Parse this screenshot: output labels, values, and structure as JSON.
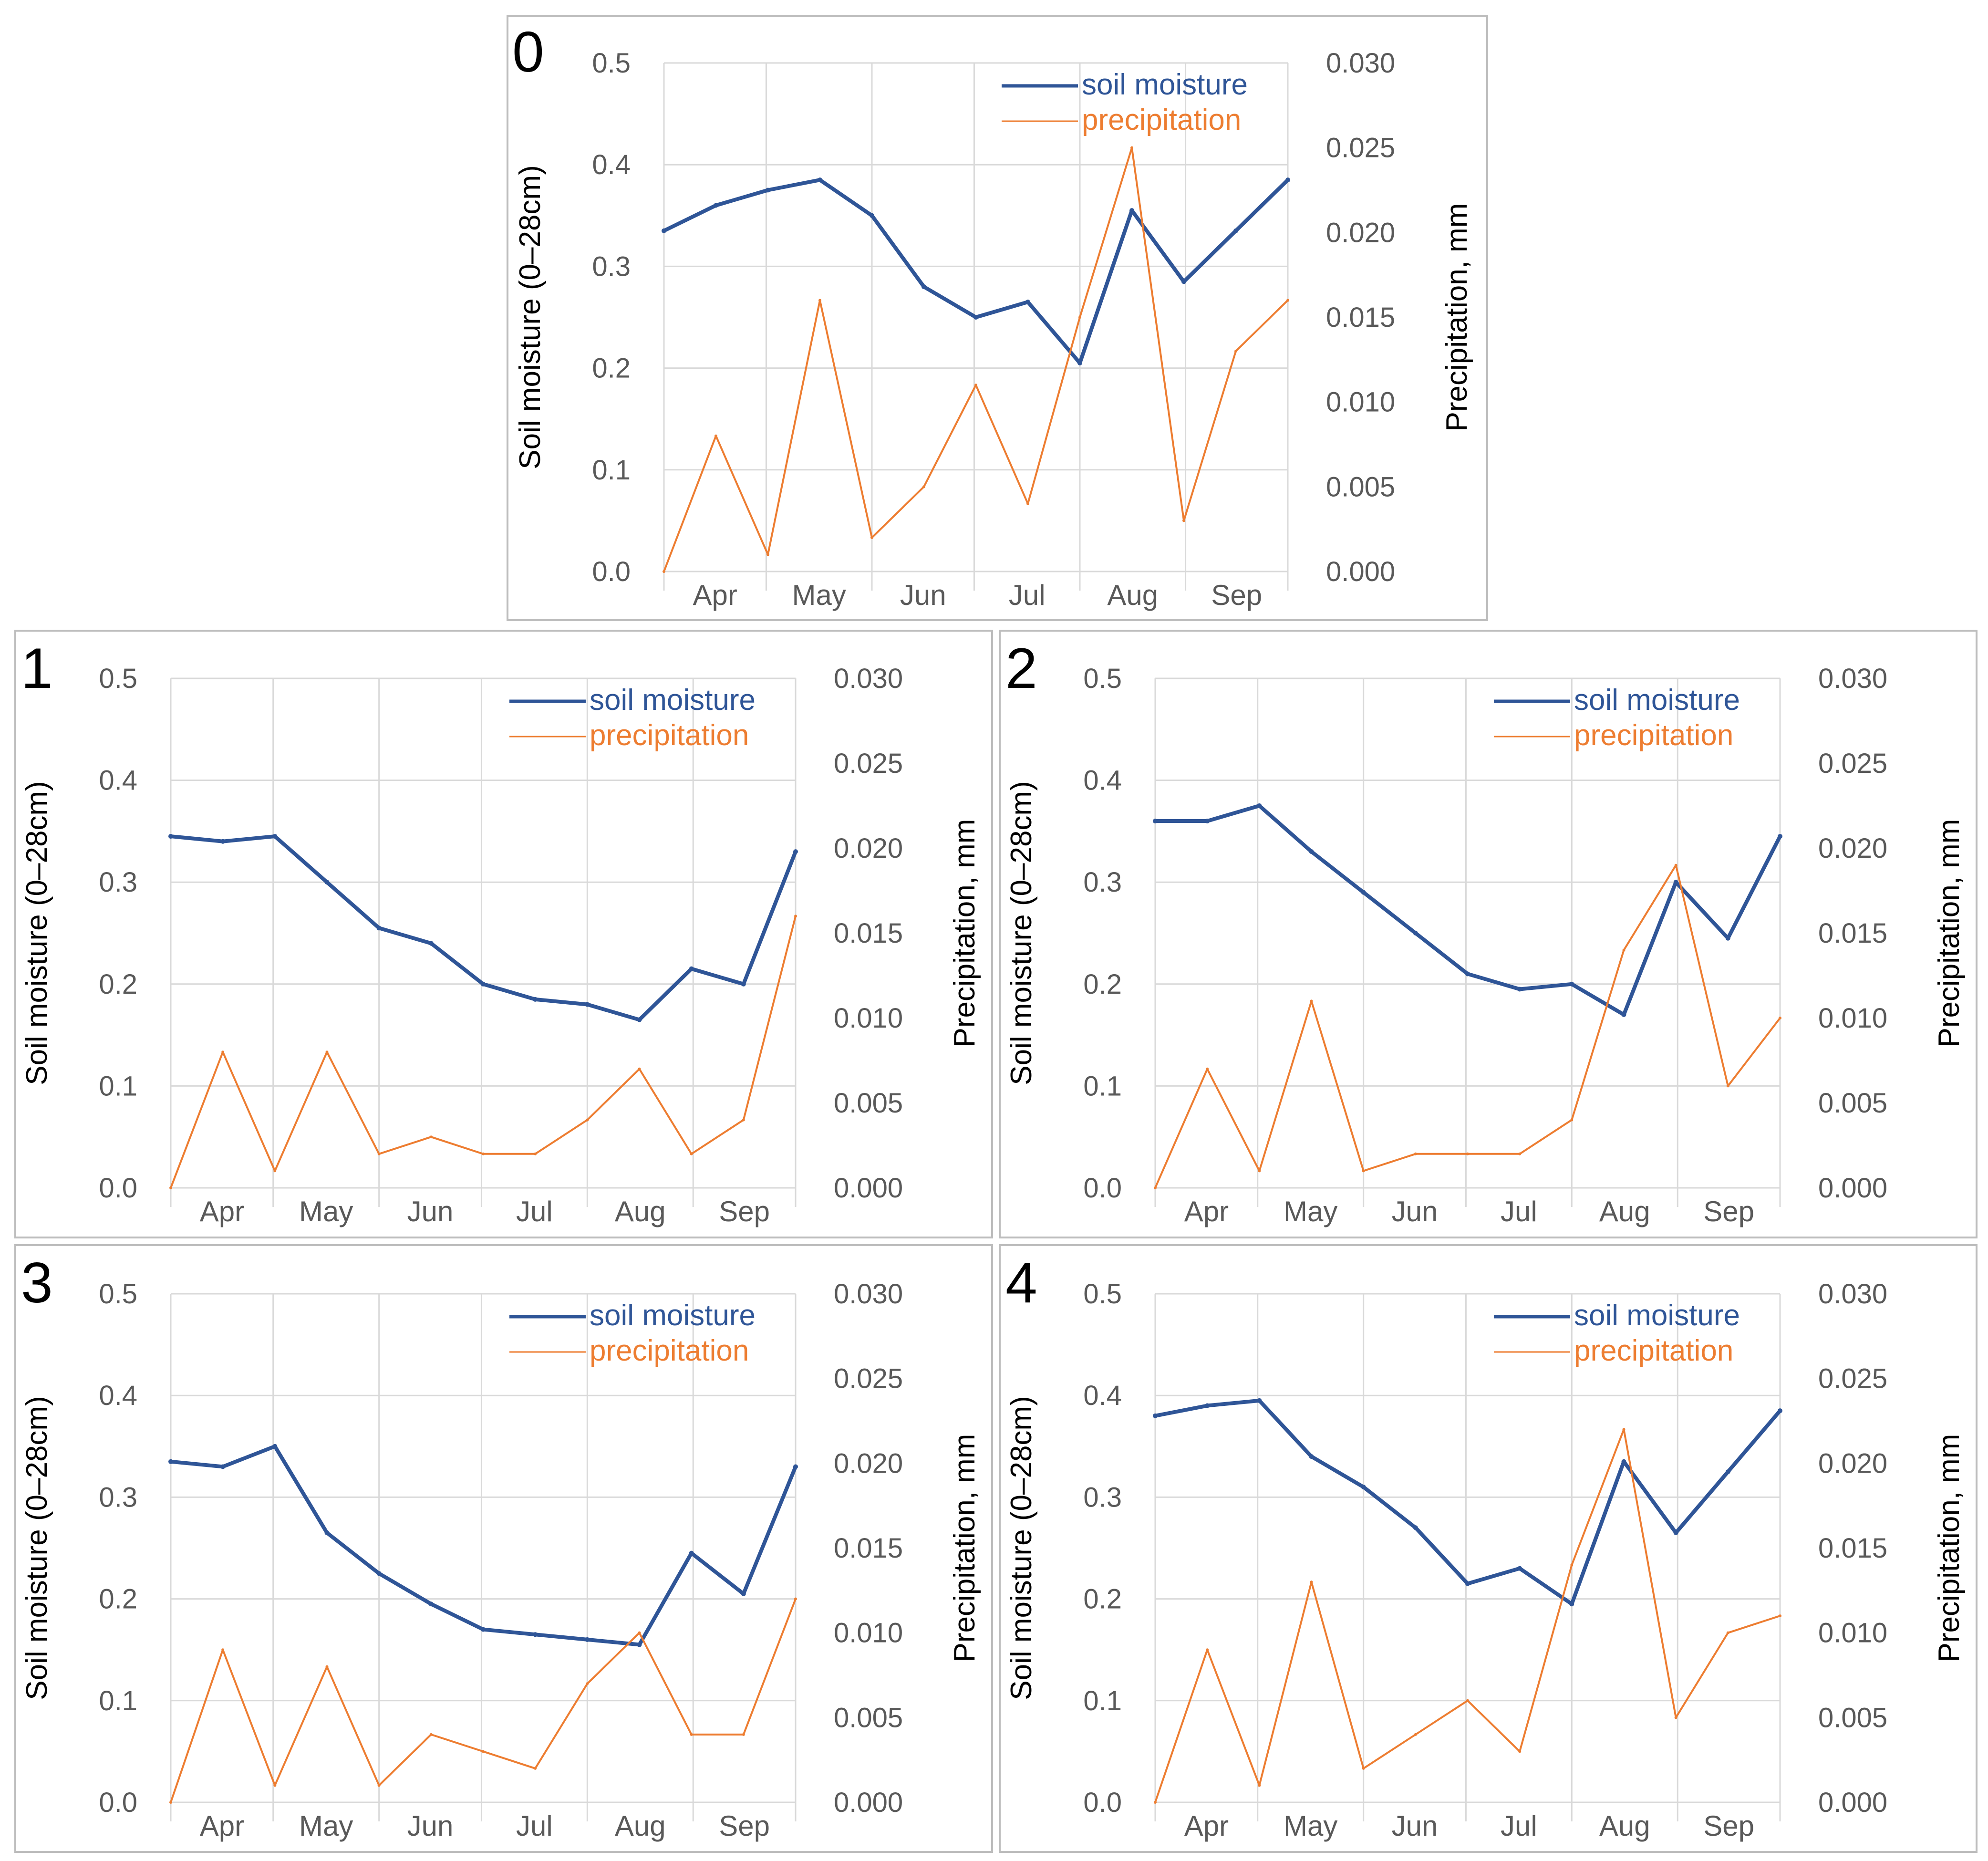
{
  "figure": {
    "legend": {
      "soil_moisture": "soil moisture",
      "precipitation": "precipitation"
    },
    "colors": {
      "soil_moisture": "#2f5597",
      "precipitation": "#ed7d31",
      "grid": "#d9d9d9",
      "text": "#595959",
      "axis_title": "#000000"
    },
    "months": [
      "Apr",
      "May",
      "Jun",
      "Jul",
      "Aug",
      "Sep"
    ],
    "left_axis": {
      "label": "Soil moisture (0–28cm)",
      "ticks": [
        "0.0",
        "0.1",
        "0.2",
        "0.3",
        "0.4",
        "0.5"
      ],
      "range": [
        0,
        0.5
      ]
    },
    "right_axis": {
      "label": "Precipitation, mm",
      "ticks": [
        "0.000",
        "0.005",
        "0.010",
        "0.015",
        "0.020",
        "0.025",
        "0.030"
      ],
      "range": [
        0,
        0.03
      ]
    }
  },
  "chart_data": [
    {
      "type": "line",
      "title": "0",
      "x": [
        "Apr 1",
        "Apr 15",
        "Apr 30",
        "May 15",
        "May 31",
        "Jun 15",
        "Jun 30",
        "Jul 15",
        "Jul 31",
        "Aug 15",
        "Aug 31",
        "Sep 15",
        "Sep 30"
      ],
      "series": [
        {
          "name": "soil moisture",
          "axis": "left",
          "values": [
            0.335,
            0.36,
            0.375,
            0.385,
            0.35,
            0.28,
            0.25,
            0.265,
            0.205,
            0.355,
            0.285,
            0.335,
            0.385
          ]
        },
        {
          "name": "precipitation",
          "axis": "right",
          "values": [
            0,
            0.008,
            0.001,
            0.016,
            0.002,
            0.005,
            0.011,
            0.004,
            0.015,
            0.025,
            0.003,
            0.013,
            0.016
          ]
        }
      ]
    },
    {
      "type": "line",
      "title": "1",
      "x": [
        "Apr 1",
        "Apr 15",
        "Apr 30",
        "May 15",
        "May 31",
        "Jun 15",
        "Jun 30",
        "Jul 15",
        "Jul 31",
        "Aug 15",
        "Aug 31",
        "Sep 15",
        "Sep 30"
      ],
      "series": [
        {
          "name": "soil moisture",
          "axis": "left",
          "values": [
            0.345,
            0.34,
            0.345,
            0.3,
            0.255,
            0.24,
            0.2,
            0.185,
            0.18,
            0.165,
            0.215,
            0.2,
            0.33
          ]
        },
        {
          "name": "precipitation",
          "axis": "right",
          "values": [
            0,
            0.008,
            0.001,
            0.008,
            0.002,
            0.003,
            0.002,
            0.002,
            0.004,
            0.007,
            0.002,
            0.004,
            0.016
          ]
        }
      ]
    },
    {
      "type": "line",
      "title": "2",
      "x": [
        "Apr 1",
        "Apr 15",
        "Apr 30",
        "May 15",
        "May 31",
        "Jun 15",
        "Jun 30",
        "Jul 15",
        "Jul 31",
        "Aug 15",
        "Aug 31",
        "Sep 15",
        "Sep 30"
      ],
      "series": [
        {
          "name": "soil moisture",
          "axis": "left",
          "values": [
            0.36,
            0.36,
            0.375,
            0.33,
            0.29,
            0.25,
            0.21,
            0.195,
            0.2,
            0.17,
            0.3,
            0.245,
            0.345
          ]
        },
        {
          "name": "precipitation",
          "axis": "right",
          "values": [
            0,
            0.007,
            0.001,
            0.011,
            0.001,
            0.002,
            0.002,
            0.002,
            0.004,
            0.014,
            0.019,
            0.006,
            0.01
          ]
        }
      ]
    },
    {
      "type": "line",
      "title": "3",
      "x": [
        "Apr 1",
        "Apr 15",
        "Apr 30",
        "May 15",
        "May 31",
        "Jun 15",
        "Jun 30",
        "Jul 15",
        "Jul 31",
        "Aug 15",
        "Aug 31",
        "Sep 15",
        "Sep 30"
      ],
      "series": [
        {
          "name": "soil moisture",
          "axis": "left",
          "values": [
            0.335,
            0.33,
            0.35,
            0.265,
            0.225,
            0.195,
            0.17,
            0.165,
            0.16,
            0.155,
            0.245,
            0.205,
            0.33
          ]
        },
        {
          "name": "precipitation",
          "axis": "right",
          "values": [
            0,
            0.009,
            0.001,
            0.008,
            0.001,
            0.004,
            0.003,
            0.002,
            0.007,
            0.01,
            0.004,
            0.004,
            0.012
          ]
        }
      ]
    },
    {
      "type": "line",
      "title": "4",
      "x": [
        "Apr 1",
        "Apr 15",
        "Apr 30",
        "May 15",
        "May 31",
        "Jun 15",
        "Jun 30",
        "Jul 15",
        "Jul 31",
        "Aug 15",
        "Aug 31",
        "Sep 15",
        "Sep 30"
      ],
      "series": [
        {
          "name": "soil moisture",
          "axis": "left",
          "values": [
            0.38,
            0.39,
            0.395,
            0.34,
            0.31,
            0.27,
            0.215,
            0.23,
            0.195,
            0.335,
            0.265,
            0.325,
            0.385
          ]
        },
        {
          "name": "precipitation",
          "axis": "right",
          "values": [
            0,
            0.009,
            0.001,
            0.013,
            0.002,
            0.004,
            0.006,
            0.003,
            0.014,
            0.022,
            0.005,
            0.01,
            0.011
          ]
        }
      ]
    }
  ]
}
